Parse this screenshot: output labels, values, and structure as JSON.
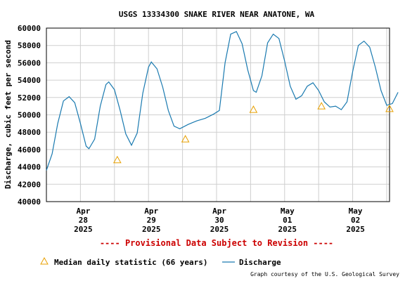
{
  "chart_data": {
    "type": "line",
    "title": "USGS 13334300 SNAKE RIVER NEAR ANATONE, WA",
    "ylabel": "Discharge, cubic feet per second",
    "xlabel": "",
    "ylim": [
      40000,
      60000
    ],
    "yticks": [
      40000,
      42000,
      44000,
      46000,
      48000,
      50000,
      52000,
      54000,
      56000,
      58000,
      60000
    ],
    "xlim": [
      "2025-04-27T11:00",
      "2025-05-02T12:00"
    ],
    "xticks": [
      {
        "t": "2025-04-28T00:00",
        "label": [
          "Apr",
          "28",
          "2025"
        ]
      },
      {
        "t": "2025-04-29T00:00",
        "label": [
          "Apr",
          "29",
          "2025"
        ]
      },
      {
        "t": "2025-04-30T00:00",
        "label": [
          "Apr",
          "30",
          "2025"
        ]
      },
      {
        "t": "2025-05-01T00:00",
        "label": [
          "May",
          "01",
          "2025"
        ]
      },
      {
        "t": "2025-05-02T00:00",
        "label": [
          "May",
          "02",
          "2025"
        ]
      }
    ],
    "grid": true,
    "series": [
      {
        "name": "Discharge",
        "color": "#1a7ab0",
        "points": [
          [
            "2025-04-27T11:00",
            43600
          ],
          [
            "2025-04-27T13:00",
            45500
          ],
          [
            "2025-04-27T15:00",
            49000
          ],
          [
            "2025-04-27T17:00",
            51600
          ],
          [
            "2025-04-27T19:00",
            52100
          ],
          [
            "2025-04-27T21:00",
            51400
          ],
          [
            "2025-04-27T23:00",
            49000
          ],
          [
            "2025-04-28T01:00",
            46400
          ],
          [
            "2025-04-28T02:00",
            46100
          ],
          [
            "2025-04-28T04:00",
            47200
          ],
          [
            "2025-04-28T06:00",
            51000
          ],
          [
            "2025-04-28T08:00",
            53500
          ],
          [
            "2025-04-28T09:00",
            53800
          ],
          [
            "2025-04-28T11:00",
            52900
          ],
          [
            "2025-04-28T13:00",
            50500
          ],
          [
            "2025-04-28T15:00",
            47800
          ],
          [
            "2025-04-28T17:00",
            46500
          ],
          [
            "2025-04-28T19:00",
            47900
          ],
          [
            "2025-04-28T21:00",
            52500
          ],
          [
            "2025-04-28T23:00",
            55500
          ],
          [
            "2025-04-29T00:00",
            56100
          ],
          [
            "2025-04-29T02:00",
            55300
          ],
          [
            "2025-04-29T04:00",
            53200
          ],
          [
            "2025-04-29T06:00",
            50500
          ],
          [
            "2025-04-29T08:00",
            48700
          ],
          [
            "2025-04-29T10:00",
            48400
          ],
          [
            "2025-04-29T13:00",
            48900
          ],
          [
            "2025-04-29T16:00",
            49300
          ],
          [
            "2025-04-29T19:00",
            49600
          ],
          [
            "2025-04-29T22:00",
            50100
          ],
          [
            "2025-04-30T00:00",
            50500
          ],
          [
            "2025-04-30T02:00",
            56000
          ],
          [
            "2025-04-30T04:00",
            59300
          ],
          [
            "2025-04-30T06:00",
            59600
          ],
          [
            "2025-04-30T08:00",
            58200
          ],
          [
            "2025-04-30T10:00",
            55200
          ],
          [
            "2025-04-30T12:00",
            52800
          ],
          [
            "2025-04-30T13:00",
            52600
          ],
          [
            "2025-04-30T15:00",
            54500
          ],
          [
            "2025-04-30T17:00",
            58300
          ],
          [
            "2025-04-30T19:00",
            59300
          ],
          [
            "2025-04-30T21:00",
            58800
          ],
          [
            "2025-04-30T23:00",
            56200
          ],
          [
            "2025-05-01T01:00",
            53300
          ],
          [
            "2025-05-01T03:00",
            51800
          ],
          [
            "2025-05-01T05:00",
            52200
          ],
          [
            "2025-05-01T07:00",
            53300
          ],
          [
            "2025-05-01T09:00",
            53700
          ],
          [
            "2025-05-01T11:00",
            52800
          ],
          [
            "2025-05-01T13:00",
            51500
          ],
          [
            "2025-05-01T15:00",
            50900
          ],
          [
            "2025-05-01T17:00",
            51000
          ],
          [
            "2025-05-01T19:00",
            50600
          ],
          [
            "2025-05-01T21:00",
            51500
          ],
          [
            "2025-05-01T23:00",
            55000
          ],
          [
            "2025-05-02T01:00",
            58000
          ],
          [
            "2025-05-02T03:00",
            58500
          ],
          [
            "2025-05-02T05:00",
            57800
          ],
          [
            "2025-05-02T07:00",
            55500
          ],
          [
            "2025-05-02T09:00",
            52800
          ],
          [
            "2025-05-02T11:00",
            51100
          ],
          [
            "2025-05-02T13:00",
            51300
          ],
          [
            "2025-05-02T15:00",
            52600
          ]
        ]
      },
      {
        "name": "Median daily statistic (66 years)",
        "color": "#e8a000",
        "marker": "triangle",
        "points": [
          [
            "2025-04-28T12:00",
            44800
          ],
          [
            "2025-04-29T12:00",
            47200
          ],
          [
            "2025-04-30T12:00",
            50600
          ],
          [
            "2025-05-01T12:00",
            51000
          ],
          [
            "2025-05-02T12:00",
            50700
          ]
        ]
      }
    ],
    "legend": [
      {
        "label": "Median daily statistic (66 years)",
        "marker": "triangle",
        "color": "#e8a000"
      },
      {
        "label": "Discharge",
        "marker": "line",
        "color": "#1a7ab0"
      }
    ],
    "legend_position": "bottom"
  },
  "provisional_note": "---- Provisional Data Subject to Revision ----",
  "credit": "Graph courtesy of the U.S. Geological Survey",
  "colors": {
    "grid": "#cfcfcf",
    "frame": "#000000",
    "provisional": "#cc0000"
  }
}
